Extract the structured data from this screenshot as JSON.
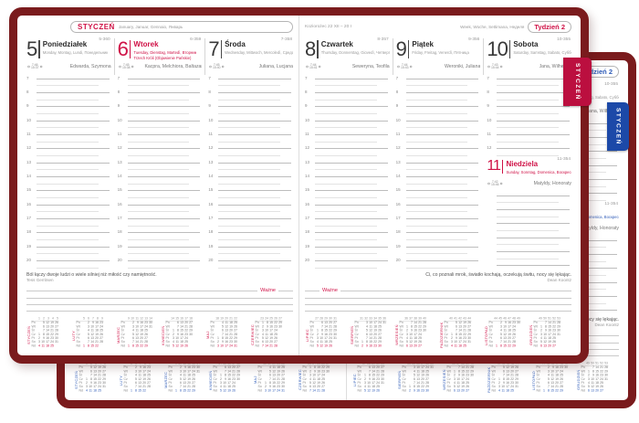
{
  "colors": {
    "cover": "#7a1b1d",
    "red_accent": "#cf1146",
    "red_tab": "#bb0f3f",
    "blue_accent": "#2f5cb8",
    "blue_tab": "#1c49a8"
  },
  "planner": {
    "edge_tab_label": "STYCZEŃ",
    "month_header": {
      "title": "STYCZEŃ",
      "langs": "January, Januar, Gennaio, Январь"
    },
    "right_header": {
      "zodiac": "Koziorożec 22 XII – 20 I",
      "week_langs": "Week, Woche, Settimana, Неделя",
      "week_label": "Tydzień 2"
    },
    "important_label": "Ważne",
    "hours_full": [
      "7",
      "8",
      "9",
      "10",
      "11",
      "12",
      "13",
      "14",
      "15",
      "16",
      "17",
      "18",
      "19",
      "20"
    ],
    "hours_sat": [
      "7",
      "8",
      "9",
      "10",
      "11",
      "12"
    ],
    "days_left": [
      {
        "num": "5",
        "name": "Poniedziałek",
        "langs": "Monday, Montag, Lundi, Понедельник",
        "doy": "5-360",
        "names": "Edwarda, Szymona",
        "sunrise": "7:46",
        "sunset": "15:37"
      },
      {
        "num": "6",
        "name": "Wtorek",
        "langs": "Tuesday, Dienstag, Martedì, Вторник",
        "holiday": "Trzech Króli (Objawienie Pańskie)",
        "doy": "6-359",
        "names": "Kacpra, Melchiora, Baltazara",
        "sunrise": "7:45",
        "sunset": "15:38",
        "accent": true
      },
      {
        "num": "7",
        "name": "Środa",
        "langs": "Wednesday, Mittwoch, Mercoledì, Среда",
        "doy": "7-358",
        "names": "Juliana, Lucjana",
        "sunrise": "7:45",
        "sunset": "15:40"
      }
    ],
    "days_right": [
      {
        "num": "8",
        "name": "Czwartek",
        "langs": "Thursday, Donnerstag, Giovedì, Четверг",
        "doy": "8-357",
        "names": "Seweryna, Teofila",
        "sunrise": "7:44",
        "sunset": "15:41"
      },
      {
        "num": "9",
        "name": "Piątek",
        "langs": "Friday, Freitag, Venerdì, Пятница",
        "doy": "9-356",
        "names": "Weroniki, Juliana",
        "sunrise": "7:44",
        "sunset": "15:43"
      },
      {
        "num": "10",
        "name": "Sobota",
        "langs": "Saturday, Samstag, Sabato, Суббота",
        "doy": "10-355",
        "names": "Jana, Wilhelma",
        "sunrise": "7:43",
        "sunset": "15:44"
      }
    ],
    "sunday": {
      "num": "11",
      "name": "Niedziela",
      "langs": "Sunday, Sonntag, Domenica, Воскресенье",
      "doy": "11-354",
      "names": "Matyldy, Honoraty",
      "sunrise": "7:42",
      "sunset": "15:46",
      "accent": true
    },
    "quotes": {
      "left": {
        "text": "Ból łączy dwoje ludzi o wiele silniej niż miłość czy namiętność.",
        "author": "Tess Gerritsen"
      },
      "right": {
        "text": "Ci, co poznali mrok, światło kochają, oczekują świtu, nocy się lękając.",
        "author": "Dean Koontz"
      }
    },
    "minical": {
      "day_labels": [
        "Pn",
        "Wt",
        "Śr",
        "Cz",
        "Pt",
        "So",
        "Nd"
      ],
      "left_months": [
        {
          "name": "STYCZEŃ",
          "weeks": [
            "1",
            "2",
            "3",
            "4",
            "5"
          ],
          "rows": [
            [
              "",
              "5",
              "12",
              "19",
              "26"
            ],
            [
              "",
              "6",
              "13",
              "20",
              "27"
            ],
            [
              "",
              "7",
              "14",
              "21",
              "28"
            ],
            [
              "1",
              "8",
              "15",
              "22",
              "29"
            ],
            [
              "2",
              "9",
              "16",
              "23",
              "30"
            ],
            [
              "3",
              "10",
              "17",
              "24",
              "31"
            ],
            [
              "4",
              "11",
              "18",
              "25",
              ""
            ]
          ]
        },
        {
          "name": "LUTY",
          "weeks": [
            "5",
            "6",
            "7",
            "8",
            "9"
          ],
          "rows": [
            [
              "",
              "2",
              "9",
              "16",
              "23"
            ],
            [
              "",
              "3",
              "10",
              "17",
              "24"
            ],
            [
              "",
              "4",
              "11",
              "18",
              "25"
            ],
            [
              "",
              "5",
              "12",
              "19",
              "26"
            ],
            [
              "",
              "6",
              "13",
              "20",
              "27"
            ],
            [
              "",
              "7",
              "14",
              "21",
              "28"
            ],
            [
              "1",
              "8",
              "15",
              "22",
              ""
            ]
          ]
        },
        {
          "name": "MARZEC",
          "weeks": [
            "9",
            "10",
            "11",
            "12",
            "13",
            "14"
          ],
          "rows": [
            [
              "",
              "2",
              "9",
              "16",
              "23",
              "30"
            ],
            [
              "",
              "3",
              "10",
              "17",
              "24",
              "31"
            ],
            [
              "",
              "4",
              "11",
              "18",
              "25",
              ""
            ],
            [
              "",
              "5",
              "12",
              "19",
              "26",
              ""
            ],
            [
              "",
              "6",
              "13",
              "20",
              "27",
              ""
            ],
            [
              "",
              "7",
              "14",
              "21",
              "28",
              ""
            ],
            [
              "1",
              "8",
              "15",
              "22",
              "29",
              ""
            ]
          ]
        },
        {
          "name": "KWIECIEŃ",
          "weeks": [
            "14",
            "15",
            "16",
            "17",
            "18"
          ],
          "rows": [
            [
              "",
              "6",
              "13",
              "20",
              "27"
            ],
            [
              "",
              "7",
              "14",
              "21",
              "28"
            ],
            [
              "1",
              "8",
              "15",
              "22",
              "29"
            ],
            [
              "2",
              "9",
              "16",
              "23",
              "30"
            ],
            [
              "3",
              "10",
              "17",
              "24",
              ""
            ],
            [
              "4",
              "11",
              "18",
              "25",
              ""
            ],
            [
              "5",
              "12",
              "19",
              "26",
              ""
            ]
          ]
        },
        {
          "name": "MAJ",
          "weeks": [
            "18",
            "19",
            "20",
            "21",
            "22"
          ],
          "rows": [
            [
              "",
              "4",
              "11",
              "18",
              "25"
            ],
            [
              "",
              "5",
              "12",
              "19",
              "26"
            ],
            [
              "",
              "6",
              "13",
              "20",
              "27"
            ],
            [
              "",
              "7",
              "14",
              "21",
              "28"
            ],
            [
              "1",
              "8",
              "15",
              "22",
              "29"
            ],
            [
              "2",
              "9",
              "16",
              "23",
              "30"
            ],
            [
              "3",
              "10",
              "17",
              "24",
              "31"
            ]
          ]
        },
        {
          "name": "CZERWIEC",
          "weeks": [
            "23",
            "24",
            "25",
            "26",
            "27"
          ],
          "rows": [
            [
              "1",
              "8",
              "15",
              "22",
              "29"
            ],
            [
              "2",
              "9",
              "16",
              "23",
              "30"
            ],
            [
              "3",
              "10",
              "17",
              "24",
              ""
            ],
            [
              "4",
              "11",
              "18",
              "25",
              ""
            ],
            [
              "5",
              "12",
              "19",
              "26",
              ""
            ],
            [
              "6",
              "13",
              "20",
              "27",
              ""
            ],
            [
              "7",
              "14",
              "21",
              "28",
              ""
            ]
          ]
        }
      ],
      "right_months": [
        {
          "name": "LIPIEC",
          "weeks": [
            "27",
            "28",
            "29",
            "30",
            "31"
          ],
          "rows": [
            [
              "",
              "6",
              "13",
              "20",
              "27"
            ],
            [
              "",
              "7",
              "14",
              "21",
              "28"
            ],
            [
              "1",
              "8",
              "15",
              "22",
              "29"
            ],
            [
              "2",
              "9",
              "16",
              "23",
              "30"
            ],
            [
              "3",
              "10",
              "17",
              "24",
              "31"
            ],
            [
              "4",
              "11",
              "18",
              "25",
              ""
            ],
            [
              "5",
              "12",
              "19",
              "26",
              ""
            ]
          ]
        },
        {
          "name": "SIERPIEŃ",
          "weeks": [
            "31",
            "32",
            "33",
            "34",
            "35",
            "36"
          ],
          "rows": [
            [
              "",
              "3",
              "10",
              "17",
              "24",
              "31"
            ],
            [
              "",
              "4",
              "11",
              "18",
              "25",
              ""
            ],
            [
              "",
              "5",
              "12",
              "19",
              "26",
              ""
            ],
            [
              "",
              "6",
              "13",
              "20",
              "27",
              ""
            ],
            [
              "",
              "7",
              "14",
              "21",
              "28",
              ""
            ],
            [
              "1",
              "8",
              "15",
              "22",
              "29",
              ""
            ],
            [
              "2",
              "9",
              "16",
              "23",
              "30",
              ""
            ]
          ]
        },
        {
          "name": "WRZESIEŃ",
          "weeks": [
            "36",
            "37",
            "38",
            "39",
            "40"
          ],
          "rows": [
            [
              "",
              "7",
              "14",
              "21",
              "28"
            ],
            [
              "1",
              "8",
              "15",
              "22",
              "29"
            ],
            [
              "2",
              "9",
              "16",
              "23",
              "30"
            ],
            [
              "3",
              "10",
              "17",
              "24",
              ""
            ],
            [
              "4",
              "11",
              "18",
              "25",
              ""
            ],
            [
              "5",
              "12",
              "19",
              "26",
              ""
            ],
            [
              "6",
              "13",
              "20",
              "27",
              ""
            ]
          ]
        },
        {
          "name": "PAŹDZIERNIK",
          "weeks": [
            "40",
            "41",
            "42",
            "43",
            "44"
          ],
          "rows": [
            [
              "",
              "5",
              "12",
              "19",
              "26"
            ],
            [
              "",
              "6",
              "13",
              "20",
              "27"
            ],
            [
              "",
              "7",
              "14",
              "21",
              "28"
            ],
            [
              "1",
              "8",
              "15",
              "22",
              "29"
            ],
            [
              "2",
              "9",
              "16",
              "23",
              "30"
            ],
            [
              "3",
              "10",
              "17",
              "24",
              "31"
            ],
            [
              "4",
              "11",
              "18",
              "25",
              ""
            ]
          ]
        },
        {
          "name": "LISTOPAD",
          "weeks": [
            "44",
            "45",
            "46",
            "47",
            "48",
            "49"
          ],
          "rows": [
            [
              "",
              "2",
              "9",
              "16",
              "23",
              "30"
            ],
            [
              "",
              "3",
              "10",
              "17",
              "24",
              ""
            ],
            [
              "",
              "4",
              "11",
              "18",
              "25",
              ""
            ],
            [
              "",
              "5",
              "12",
              "19",
              "26",
              ""
            ],
            [
              "",
              "6",
              "13",
              "20",
              "27",
              ""
            ],
            [
              "",
              "7",
              "14",
              "21",
              "28",
              ""
            ],
            [
              "1",
              "8",
              "15",
              "22",
              "29",
              ""
            ]
          ]
        },
        {
          "name": "GRUDZIEŃ",
          "weeks": [
            "49",
            "50",
            "51",
            "52",
            "53"
          ],
          "rows": [
            [
              "",
              "7",
              "14",
              "21",
              "28"
            ],
            [
              "1",
              "8",
              "15",
              "22",
              "29"
            ],
            [
              "2",
              "9",
              "16",
              "23",
              "30"
            ],
            [
              "3",
              "10",
              "17",
              "24",
              "31"
            ],
            [
              "4",
              "11",
              "18",
              "25",
              ""
            ],
            [
              "5",
              "12",
              "19",
              "26",
              ""
            ],
            [
              "6",
              "13",
              "20",
              "27",
              ""
            ]
          ]
        }
      ]
    }
  }
}
